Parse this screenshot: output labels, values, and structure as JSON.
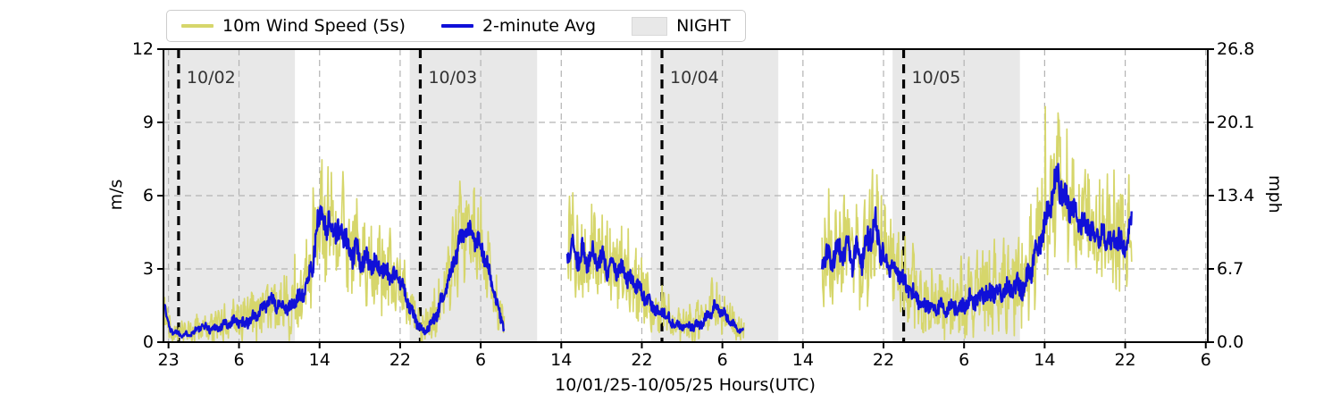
{
  "legend": {
    "items": [
      {
        "label": "10m Wind Speed (5s)",
        "swatch": "line",
        "color": "#d6d66b"
      },
      {
        "label": "2-minute Avg",
        "swatch": "line",
        "color": "#1010d8"
      },
      {
        "label": "NIGHT",
        "swatch": "patch",
        "color": "#e8e8e8"
      }
    ]
  },
  "axes": {
    "left": {
      "label": "m/s",
      "tick_labels": [
        "0",
        "3",
        "6",
        "9",
        "12"
      ],
      "tick_values": [
        0,
        3,
        6,
        9,
        12
      ],
      "range": [
        0,
        12
      ]
    },
    "right": {
      "label": "mph",
      "tick_labels": [
        "0.0",
        "6.7",
        "13.4",
        "20.1",
        "26.8"
      ],
      "tick_values": [
        0,
        3,
        6,
        9,
        12
      ]
    },
    "x": {
      "label": "10/01/25-10/05/25  Hours(UTC)",
      "start_reference": "hours since 10/01/25 23:00 UTC",
      "domain_hours": [
        -0.5,
        103.2
      ],
      "tick_hours": [
        0,
        7,
        15,
        23,
        31,
        39,
        47,
        55,
        63,
        71,
        79,
        87,
        95,
        103
      ],
      "tick_labels": [
        "23",
        "6",
        "14",
        "22",
        "6",
        "14",
        "22",
        "6",
        "14",
        "22",
        "6",
        "14",
        "22",
        "6"
      ]
    }
  },
  "chart_data": {
    "type": "line",
    "title": "",
    "x_unit": "hours since 10/01/25 23:00 UTC",
    "y_unit_left": "m/s",
    "y_unit_right": "mph",
    "ylim": [
      0,
      12
    ],
    "grid": "dashed gray at y=3,6,9 and at every x tick",
    "night_bands_hours": [
      [
        -0.5,
        12.55
      ],
      [
        23.95,
        36.6
      ],
      [
        47.9,
        60.55
      ],
      [
        71.9,
        84.55
      ]
    ],
    "day_lines": [
      {
        "hour": 1,
        "label": "10/02"
      },
      {
        "hour": 25,
        "label": "10/03"
      },
      {
        "hour": 49,
        "label": "10/04"
      },
      {
        "hour": 73,
        "label": "10/05"
      }
    ],
    "series": [
      {
        "name": "10m Wind Speed (5s)",
        "color": "#d6d66b",
        "style": "dense 5-second trace rendered as avg ± spread noise band"
      },
      {
        "name": "2-minute Avg",
        "color": "#1010d8",
        "style": "2-minute average rendered as avg ± 0.34·spread noise band"
      }
    ],
    "segments_hours": [
      {
        "t_range": [
          -0.44,
          33.35
        ],
        "avg_keyframes": [
          [
            -0.44,
            1.7
          ],
          [
            -0.2,
            1.0
          ],
          [
            0.2,
            0.5
          ],
          [
            1,
            0.35
          ],
          [
            1.8,
            0.3
          ],
          [
            2.6,
            0.45
          ],
          [
            3.4,
            0.65
          ],
          [
            4.2,
            0.55
          ],
          [
            5,
            0.6
          ],
          [
            5.8,
            0.75
          ],
          [
            6.6,
            0.9
          ],
          [
            7.4,
            0.75
          ],
          [
            8.2,
            0.95
          ],
          [
            9,
            1.15
          ],
          [
            9.6,
            1.5
          ],
          [
            10.2,
            1.75
          ],
          [
            10.8,
            1.45
          ],
          [
            11.4,
            1.6
          ],
          [
            12,
            1.3
          ],
          [
            12.6,
            1.75
          ],
          [
            13.2,
            1.9
          ],
          [
            13.8,
            2.4
          ],
          [
            14.3,
            3.2
          ],
          [
            14.8,
            4.8
          ],
          [
            15.3,
            5.5
          ],
          [
            15.7,
            4.5
          ],
          [
            16.2,
            5.0
          ],
          [
            16.7,
            4.3
          ],
          [
            17.2,
            4.7
          ],
          [
            17.7,
            4.0
          ],
          [
            18.2,
            3.5
          ],
          [
            18.7,
            3.8
          ],
          [
            19.2,
            3.3
          ],
          [
            19.7,
            3.5
          ],
          [
            20.2,
            3.0
          ],
          [
            20.7,
            3.3
          ],
          [
            21.2,
            2.8
          ],
          [
            21.7,
            3.0
          ],
          [
            22.2,
            2.6
          ],
          [
            22.7,
            2.8
          ],
          [
            23.2,
            2.3
          ],
          [
            23.7,
            1.7
          ],
          [
            24.2,
            1.2
          ],
          [
            24.8,
            0.7
          ],
          [
            25.4,
            0.45
          ],
          [
            26.0,
            0.7
          ],
          [
            26.6,
            1.1
          ],
          [
            27.2,
            1.8
          ],
          [
            27.8,
            2.6
          ],
          [
            28.4,
            3.4
          ],
          [
            29.0,
            4.2
          ],
          [
            29.7,
            4.5
          ],
          [
            30.2,
            4.35
          ],
          [
            30.7,
            4.2
          ],
          [
            31.2,
            3.8
          ],
          [
            31.7,
            3.1
          ],
          [
            32.2,
            2.2
          ],
          [
            32.7,
            1.4
          ],
          [
            33.1,
            0.8
          ],
          [
            33.35,
            0.6
          ]
        ],
        "spread_keyframes": [
          [
            -0.44,
            0.6
          ],
          [
            1,
            0.35
          ],
          [
            3,
            0.5
          ],
          [
            6,
            0.7
          ],
          [
            9,
            0.9
          ],
          [
            12,
            1.0
          ],
          [
            13.8,
            1.3
          ],
          [
            14.8,
            1.8
          ],
          [
            16,
            1.9
          ],
          [
            18,
            1.6
          ],
          [
            20,
            1.45
          ],
          [
            22,
            1.3
          ],
          [
            23.7,
            0.95
          ],
          [
            25.3,
            0.55
          ],
          [
            27,
            1.0
          ],
          [
            29,
            1.55
          ],
          [
            30.7,
            1.5
          ],
          [
            32,
            1.05
          ],
          [
            33.35,
            0.65
          ]
        ]
      },
      {
        "t_range": [
          39.6,
          57.15
        ],
        "avg_keyframes": [
          [
            39.6,
            3.5
          ],
          [
            40.1,
            3.9
          ],
          [
            40.6,
            3.4
          ],
          [
            41.1,
            3.75
          ],
          [
            41.6,
            3.3
          ],
          [
            42.1,
            3.6
          ],
          [
            42.6,
            3.15
          ],
          [
            43.1,
            3.45
          ],
          [
            43.6,
            3.0
          ],
          [
            44.1,
            3.25
          ],
          [
            44.6,
            2.85
          ],
          [
            45.1,
            2.95
          ],
          [
            45.6,
            2.55
          ],
          [
            46.1,
            2.6
          ],
          [
            46.6,
            2.25
          ],
          [
            47.1,
            2.0
          ],
          [
            47.6,
            1.7
          ],
          [
            48.1,
            1.45
          ],
          [
            48.6,
            1.2
          ],
          [
            49.1,
            1.35
          ],
          [
            49.6,
            1.0
          ],
          [
            50.1,
            0.8
          ],
          [
            50.6,
            0.7
          ],
          [
            51.1,
            0.6
          ],
          [
            51.6,
            0.7
          ],
          [
            52.1,
            0.62
          ],
          [
            52.6,
            0.72
          ],
          [
            53.1,
            0.85
          ],
          [
            53.6,
            1.05
          ],
          [
            54.1,
            1.4
          ],
          [
            54.6,
            1.45
          ],
          [
            55.1,
            1.15
          ],
          [
            55.6,
            0.95
          ],
          [
            56.1,
            0.75
          ],
          [
            56.6,
            0.5
          ],
          [
            57.15,
            0.4
          ]
        ],
        "spread_keyframes": [
          [
            39.6,
            1.45
          ],
          [
            41,
            1.55
          ],
          [
            43,
            1.45
          ],
          [
            45,
            1.3
          ],
          [
            47,
            1.1
          ],
          [
            49,
            0.8
          ],
          [
            51,
            0.55
          ],
          [
            53,
            0.7
          ],
          [
            54.2,
            0.9
          ],
          [
            55.2,
            0.75
          ],
          [
            56.2,
            0.5
          ],
          [
            57.15,
            0.4
          ]
        ]
      },
      {
        "t_range": [
          64.9,
          95.65
        ],
        "avg_keyframes": [
          [
            64.9,
            3.0
          ],
          [
            65.4,
            3.7
          ],
          [
            65.9,
            3.3
          ],
          [
            66.4,
            3.95
          ],
          [
            66.9,
            3.45
          ],
          [
            67.4,
            3.85
          ],
          [
            67.9,
            3.3
          ],
          [
            68.4,
            3.75
          ],
          [
            68.9,
            3.4
          ],
          [
            69.4,
            4.1
          ],
          [
            69.9,
            4.5
          ],
          [
            70.2,
            4.9
          ],
          [
            70.6,
            3.9
          ],
          [
            71.1,
            3.55
          ],
          [
            71.6,
            3.2
          ],
          [
            72.1,
            2.95
          ],
          [
            72.6,
            2.7
          ],
          [
            73.1,
            2.45
          ],
          [
            73.6,
            2.15
          ],
          [
            74.1,
            1.9
          ],
          [
            74.6,
            1.7
          ],
          [
            75.1,
            1.5
          ],
          [
            75.6,
            1.6
          ],
          [
            76.1,
            1.42
          ],
          [
            76.6,
            1.52
          ],
          [
            77.1,
            1.35
          ],
          [
            77.6,
            1.45
          ],
          [
            78.1,
            1.5
          ],
          [
            78.6,
            1.4
          ],
          [
            79.1,
            1.6
          ],
          [
            79.6,
            1.8
          ],
          [
            80.1,
            1.7
          ],
          [
            80.6,
            1.9
          ],
          [
            81.1,
            2.1
          ],
          [
            81.6,
            1.9
          ],
          [
            82.1,
            2.2
          ],
          [
            82.6,
            2.0
          ],
          [
            83.1,
            2.3
          ],
          [
            83.6,
            2.1
          ],
          [
            84.1,
            2.35
          ],
          [
            84.6,
            2.2
          ],
          [
            85.1,
            2.5
          ],
          [
            85.6,
            2.95
          ],
          [
            86.1,
            3.55
          ],
          [
            86.6,
            4.25
          ],
          [
            87.1,
            4.9
          ],
          [
            87.6,
            5.6
          ],
          [
            88.0,
            6.3
          ],
          [
            88.3,
            6.95
          ],
          [
            88.7,
            6.1
          ],
          [
            89.2,
            5.75
          ],
          [
            89.7,
            5.4
          ],
          [
            90.2,
            5.1
          ],
          [
            90.7,
            4.7
          ],
          [
            91.2,
            4.9
          ],
          [
            91.7,
            4.4
          ],
          [
            92.2,
            4.6
          ],
          [
            92.7,
            4.2
          ],
          [
            93.2,
            4.5
          ],
          [
            93.7,
            4.0
          ],
          [
            94.2,
            4.4
          ],
          [
            94.7,
            3.9
          ],
          [
            95.2,
            4.3
          ],
          [
            95.65,
            5.0
          ]
        ],
        "spread_keyframes": [
          [
            64.9,
            1.55
          ],
          [
            66,
            1.75
          ],
          [
            68,
            1.7
          ],
          [
            70,
            1.95
          ],
          [
            71,
            1.6
          ],
          [
            72,
            1.4
          ],
          [
            73.5,
            1.25
          ],
          [
            75,
            1.1
          ],
          [
            77,
            1.1
          ],
          [
            79,
            1.25
          ],
          [
            81,
            1.35
          ],
          [
            83,
            1.45
          ],
          [
            85,
            1.6
          ],
          [
            86.5,
            1.8
          ],
          [
            87.5,
            2.0
          ],
          [
            88.3,
            2.35
          ],
          [
            89,
            2.0
          ],
          [
            90,
            1.9
          ],
          [
            91,
            1.8
          ],
          [
            92,
            1.9
          ],
          [
            93,
            2.0
          ],
          [
            94,
            1.9
          ],
          [
            95,
            2.0
          ],
          [
            95.65,
            1.5
          ]
        ]
      }
    ]
  },
  "colors": {
    "wind_5s": "#d6d66b",
    "wind_avg": "#1010d8",
    "night_band": "#e8e8e8",
    "gridline": "#b3b3b3",
    "spine": "#000000",
    "day_line": "#000000",
    "day_label": "#333333",
    "legend_border": "#cccccc"
  }
}
